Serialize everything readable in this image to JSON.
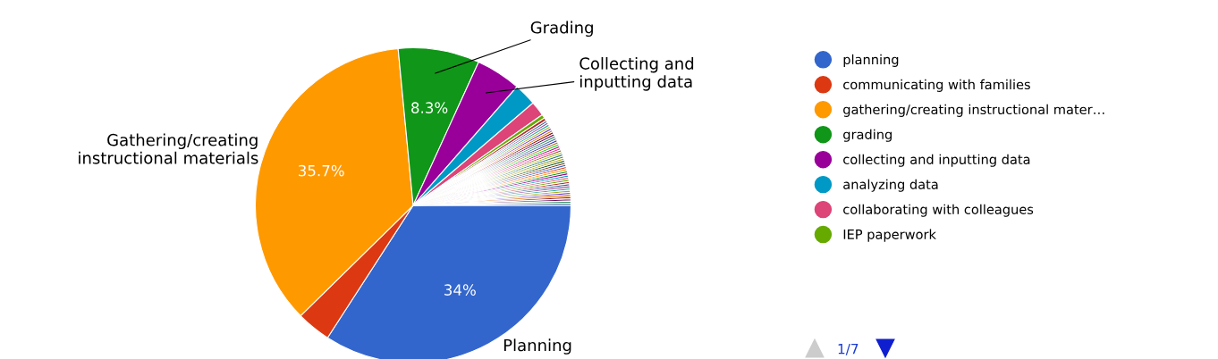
{
  "chart_data": {
    "type": "pie",
    "categories": [
      "planning",
      "communicating with families",
      "gathering/creating instructional mater…",
      "grading",
      "collecting and inputting data",
      "analyzing data",
      "collaborating with colleagues",
      "IEP paperwork",
      null,
      null,
      null,
      null,
      null,
      null,
      null,
      null,
      null,
      null,
      null,
      null,
      null,
      null,
      null,
      null,
      null,
      null,
      null,
      null,
      null,
      null,
      null,
      null,
      null,
      null,
      null,
      null,
      null,
      null,
      null,
      null,
      null,
      null,
      null,
      null,
      null,
      null,
      null,
      null,
      null,
      null
    ],
    "values": [
      34,
      3.5,
      35.7,
      8.3,
      4.6,
      2.3,
      1.5,
      0.4,
      0.3,
      0.22,
      0.22,
      0.22,
      0.22,
      0.22,
      0.22,
      0.22,
      0.22,
      0.22,
      0.22,
      0.22,
      0.22,
      0.22,
      0.22,
      0.22,
      0.22,
      0.22,
      0.22,
      0.22,
      0.22,
      0.22,
      0.22,
      0.22,
      0.22,
      0.22,
      0.22,
      0.22,
      0.22,
      0.22,
      0.22,
      0.22,
      0.22,
      0.22,
      0.22,
      0.22,
      0.22,
      0.22,
      0.22,
      0.22,
      0.22,
      0.22
    ],
    "colors": [
      "#3366cc",
      "#dc3912",
      "#ff9900",
      "#109618",
      "#990099",
      "#0099c6",
      "#dd4477",
      "#66aa00",
      "#b82e2e",
      "#316395",
      "#994499",
      "#22aa99",
      "#aaaa11",
      "#6633cc",
      "#e67300",
      "#8b0707",
      "#651067",
      "#329262",
      "#5574a6",
      "#3b3eac",
      "#b77322",
      "#16d620",
      "#b91383",
      "#f4359e",
      "#9c5935",
      "#a9c413",
      "#2a778d",
      "#668d1c",
      "#bea413",
      "#0c5922",
      "#743411",
      "#3366cc",
      "#dc3912",
      "#ff9900",
      "#109618",
      "#990099",
      "#0099c6",
      "#dd4477",
      "#66aa00",
      "#b82e2e",
      "#316395",
      "#994499",
      "#22aa99",
      "#aaaa11",
      "#6633cc",
      "#e67300",
      "#8b0707",
      "#651067",
      "#329262",
      "#5574a6"
    ],
    "value_labels": [
      "34%",
      null,
      "35.7%",
      "8.3%",
      null,
      null,
      null,
      null,
      null,
      null,
      null,
      null,
      null,
      null,
      null,
      null,
      null,
      null,
      null,
      null,
      null,
      null,
      null,
      null,
      null,
      null,
      null,
      null,
      null,
      null,
      null,
      null,
      null,
      null,
      null,
      null,
      null,
      null,
      null,
      null,
      null,
      null,
      null,
      null,
      null,
      null,
      null,
      null,
      null,
      null
    ],
    "legend": "right",
    "annotations": [
      {
        "text": "Planning",
        "x": "planning"
      },
      {
        "text": "Gathering/creating\ninstructional materials",
        "x": "gathering/creating instructional mater…"
      },
      {
        "text": "Grading",
        "x": "grading"
      },
      {
        "text": "Collecting and\ninputting data",
        "x": "collecting and inputting data"
      },
      "1/7"
    ]
  }
}
